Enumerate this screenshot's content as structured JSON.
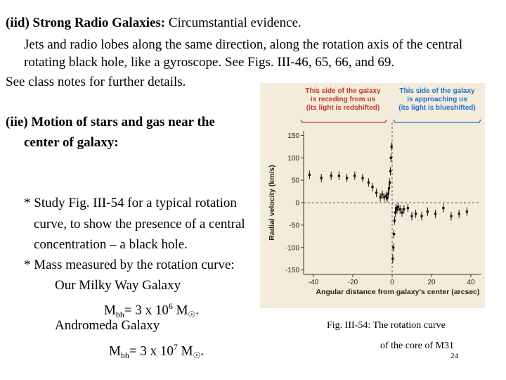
{
  "slide": {
    "page_number": "24",
    "iid": {
      "heading_bold": "(iid) Strong Radio Galaxies:",
      "heading_rest": " Circumstantial evidence.",
      "line1": "Jets and radio lobes along the same direction, along the rotation axis of the central",
      "line2": "rotating black hole, like a gyroscope. See Figs. III-46, 65, 66, and 69.",
      "line3": "See class notes for further details."
    },
    "iie": {
      "heading_line1": "(iie) Motion of stars and gas near the",
      "heading_line2": "center of galaxy:",
      "bullet1_line1": "* Study Fig. III-54 for a typical rotation",
      "bullet1_line2": "curve, to show the presence of a central",
      "bullet1_line3": "concentration – a black hole.",
      "bullet2": "* Mass measured by the rotation curve:",
      "milky_way": "Our Milky Way Galaxy",
      "mw_mass_prefix": "M",
      "mw_mass_sub": "bh",
      "mw_mass_eq": "= 3 x 10",
      "mw_mass_exp": "6",
      "mw_mass_unit": " M",
      "sun_symbol": "☉",
      "mw_period": ".",
      "andromeda": "Andromeda Galaxy",
      "m31_mass_prefix": "M",
      "m31_mass_sub": "bh",
      "m31_mass_eq": "= 3 x 10",
      "m31_mass_exp": "7",
      "m31_mass_unit": " M",
      "m31_period": "."
    },
    "caption_line1": "Fig. III-54: The rotation curve",
    "caption_line2": "of  the core of M31"
  },
  "chart_data": {
    "type": "scatter",
    "annotation_left": [
      "This side of the galaxy",
      "is receding from us",
      "(its light is redshifted)"
    ],
    "annotation_right": [
      "This side of the galaxy",
      "is approaching us",
      "(its light is blueshifted)"
    ],
    "annotation_left_color": "#c0392b",
    "annotation_right_color": "#1f6fd1",
    "xlabel": "Angular distance from galaxy's center (arcsec)",
    "ylabel": "Radial velocity (km/s)",
    "xlim": [
      -45,
      45
    ],
    "ylim": [
      -160,
      160
    ],
    "xticks": [
      -40,
      -20,
      0,
      20,
      40
    ],
    "yticks": [
      150,
      100,
      50,
      0,
      -50,
      -100,
      -150
    ],
    "vline_x": 0,
    "hline_y": 0,
    "grid": false,
    "series": [
      {
        "x": [
          -42,
          -36,
          -31,
          -27,
          -23,
          -19,
          -15,
          -12,
          -10,
          -8,
          -6,
          -5,
          -4,
          -3,
          -2.5,
          -2,
          -1.6,
          -1.2,
          -0.9,
          -0.6,
          -0.3,
          0.3,
          0.6,
          0.9,
          1.2,
          1.6,
          2,
          2.5,
          3,
          4,
          5,
          6,
          8,
          10,
          12,
          15,
          18,
          22,
          26,
          30,
          34,
          38
        ],
        "y": [
          62,
          55,
          60,
          60,
          55,
          60,
          55,
          45,
          35,
          22,
          12,
          18,
          12,
          15,
          10,
          20,
          32,
          45,
          70,
          100,
          125,
          -125,
          -100,
          -70,
          -40,
          -22,
          -12,
          -15,
          -10,
          -15,
          -22,
          -15,
          -12,
          -30,
          -25,
          -30,
          -20,
          -25,
          -12,
          -30,
          -25,
          -20
        ]
      }
    ]
  }
}
